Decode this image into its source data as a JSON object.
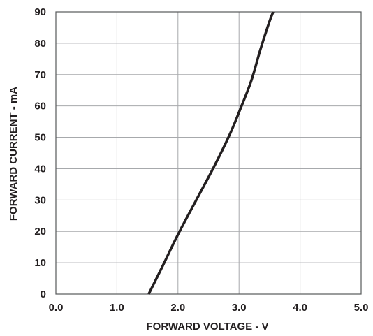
{
  "chart_data": {
    "type": "line",
    "title": "",
    "xlabel": "FORWARD VOLTAGE - V",
    "ylabel": "FORWARD CURRENT - mA",
    "xlim": [
      0,
      5
    ],
    "ylim": [
      0,
      90
    ],
    "xticks": [
      "0.0",
      "1.0",
      "2.0",
      "3.0",
      "4.0",
      "5.0"
    ],
    "yticks": [
      "0",
      "10",
      "20",
      "30",
      "40",
      "50",
      "60",
      "70",
      "80",
      "90"
    ],
    "grid": true,
    "legend": "none",
    "series": [
      {
        "x": [
          1.52,
          1.75,
          2.0,
          2.3,
          2.6,
          2.85,
          3.0,
          3.2,
          3.35,
          3.5,
          3.56
        ],
        "y": [
          0,
          9,
          19,
          30,
          41,
          51,
          58,
          68,
          78,
          87,
          90
        ],
        "color": "#231f20"
      }
    ],
    "colors": {
      "curve": "#231f20",
      "grid": "#a7a9ac",
      "frame": "#58595b",
      "text": "#231f20"
    }
  }
}
